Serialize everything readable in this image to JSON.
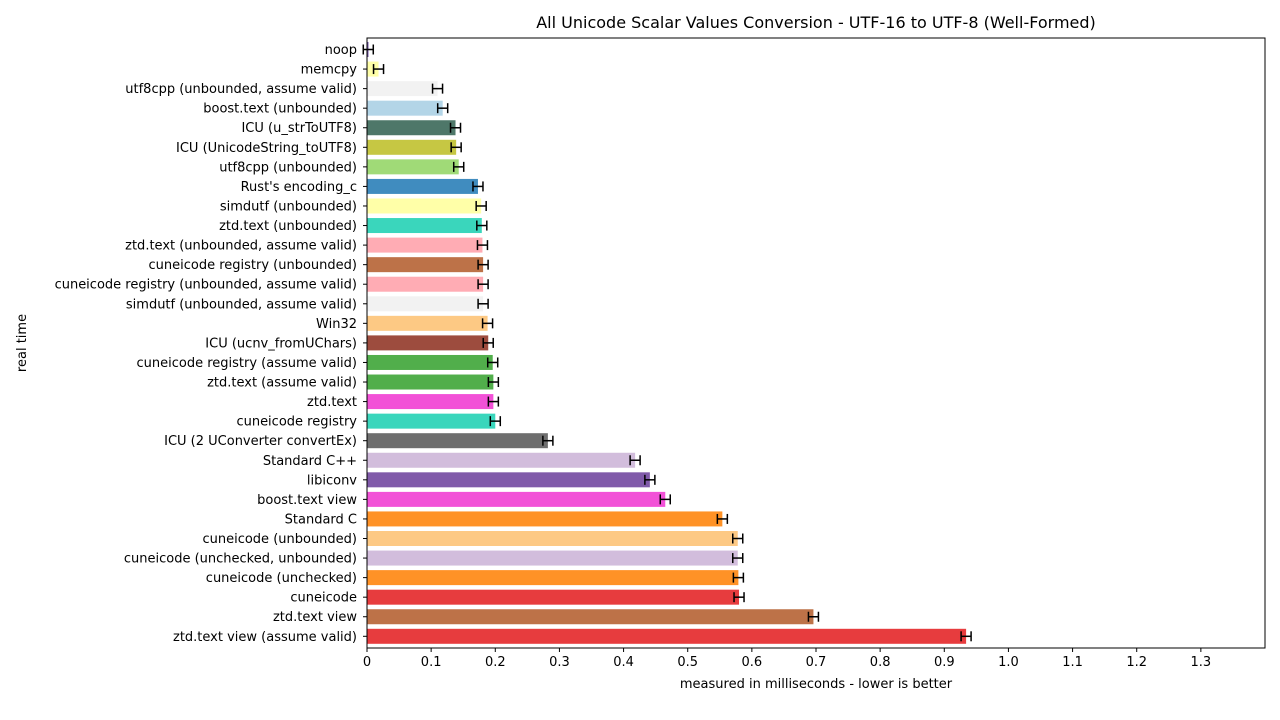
{
  "chart_data": {
    "type": "bar",
    "orientation": "horizontal",
    "title": "All Unicode Scalar Values Conversion - UTF-16 to UTF-8 (Well-Formed)",
    "xlabel": "measured in milliseconds - lower is better",
    "ylabel": "real time",
    "xlim": [
      0,
      1.4
    ],
    "xticks": [
      "0",
      "0.1",
      "0.2",
      "0.3",
      "0.4",
      "0.5",
      "0.6",
      "0.7",
      "0.8",
      "0.9",
      "1.0",
      "1.1",
      "1.2",
      "1.3"
    ],
    "grid": false,
    "categories": [
      "noop",
      "memcpy",
      "utf8cpp (unbounded, assume valid)",
      "boost.text (unbounded)",
      "ICU (u_strToUTF8)",
      "ICU (UnicodeString_toUTF8)",
      "utf8cpp (unbounded)",
      "Rust's encoding_c",
      "simdutf (unbounded)",
      "ztd.text (unbounded)",
      "ztd.text (unbounded, assume valid)",
      "cuneicode registry (unbounded)",
      "cuneicode registry (unbounded, assume valid)",
      "simdutf (unbounded, assume valid)",
      "Win32",
      "ICU (ucnv_fromUChars)",
      "cuneicode registry (assume valid)",
      "ztd.text (assume valid)",
      "ztd.text",
      "cuneicode registry",
      "ICU (2 UConverter convertEx)",
      "Standard C++",
      "libiconv",
      "boost.text view",
      "Standard C",
      "cuneicode (unbounded)",
      "cuneicode (unchecked, unbounded)",
      "cuneicode (unchecked)",
      "cuneicode",
      "ztd.text view",
      "ztd.text view (assume valid)"
    ],
    "values": [
      0.002,
      0.018,
      0.11,
      0.118,
      0.138,
      0.139,
      0.143,
      0.173,
      0.178,
      0.179,
      0.18,
      0.181,
      0.181,
      0.181,
      0.188,
      0.189,
      0.196,
      0.197,
      0.197,
      0.2,
      0.282,
      0.418,
      0.441,
      0.465,
      0.554,
      0.578,
      0.578,
      0.579,
      0.58,
      0.696,
      0.934
    ],
    "colors": [
      "#5e3c99",
      "#ffff99",
      "#f0f0f0",
      "#a6cee3",
      "#2f5f4f",
      "#bcbd22",
      "#8fd35f",
      "#1f78b4",
      "#ffff99",
      "#17cfb0",
      "#ff9da7",
      "#b15928",
      "#ff9da7",
      "#f0f0f0",
      "#fdbf6f",
      "#8c2d1c",
      "#33a02c",
      "#33a02c",
      "#f032d0",
      "#17cfb0",
      "#555555",
      "#cab2d6",
      "#6a3d9a",
      "#f032d0",
      "#ff7f00",
      "#fdbf6f",
      "#cab2d6",
      "#ff7f00",
      "#e31a1c",
      "#b15928",
      "#e31a1c"
    ]
  }
}
